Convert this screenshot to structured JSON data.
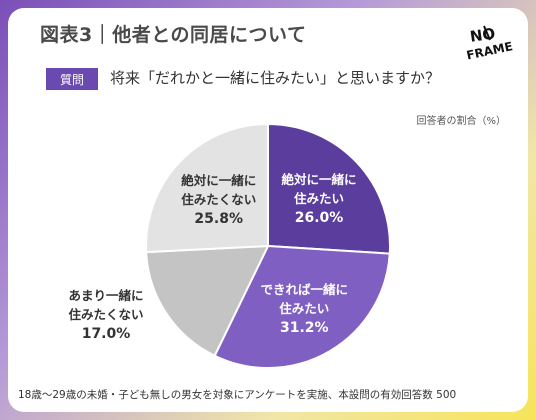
{
  "header": {
    "title": "図表3｜他者との同居について",
    "question_tag": "質問",
    "question": "将来「だれかと一緒に住みたい」と思いますか？",
    "unit_note": "回答者の割合（%）"
  },
  "logo": {
    "text_top": "NO",
    "text_bottom": "FRAME"
  },
  "footer": {
    "note": "18歳〜29歳の未婚・子ども無しの男女を対象にアンケートを実施、本設問の有効回答数 500"
  },
  "colors": {
    "accent": "#6a4ab0",
    "slice_1": "#5b3d9e",
    "slice_2": "#7f5fc2",
    "slice_3": "#c4c4c4",
    "slice_4": "#e3e3e3"
  },
  "chart_data": {
    "type": "pie",
    "title": "",
    "start_angle_deg": 0,
    "direction": "clockwise",
    "slices": [
      {
        "label_lines": [
          "絶対に一緒に",
          "住みたい"
        ],
        "value": 26.0,
        "value_text": "26.0%",
        "color": "#5b3d9e",
        "label_color": "#ffffff",
        "label_inside": true
      },
      {
        "label_lines": [
          "できれば一緒に",
          "住みたい"
        ],
        "value": 31.2,
        "value_text": "31.2%",
        "color": "#7f5fc2",
        "label_color": "#ffffff",
        "label_inside": true
      },
      {
        "label_lines": [
          "あまり一緒に",
          "住みたくない"
        ],
        "value": 17.0,
        "value_text": "17.0%",
        "color": "#c4c4c4",
        "label_color": "#333333",
        "label_inside": false
      },
      {
        "label_lines": [
          "絶対に一緒に",
          "住みたくない"
        ],
        "value": 25.8,
        "value_text": "25.8%",
        "color": "#e3e3e3",
        "label_color": "#333333",
        "label_inside": true
      }
    ]
  }
}
